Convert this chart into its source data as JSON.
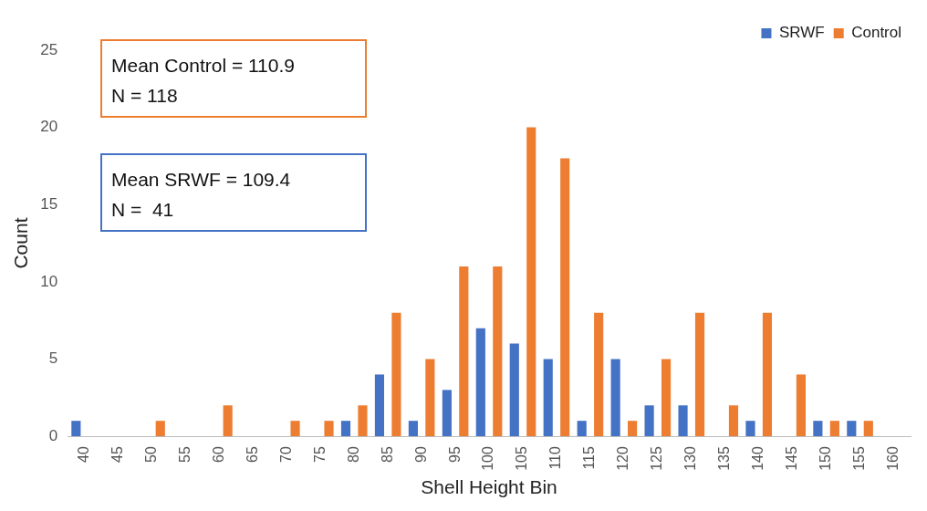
{
  "chart_data": {
    "type": "bar",
    "xlabel": "Shell Height Bin",
    "ylabel": "Count",
    "categories": [
      "40",
      "45",
      "50",
      "55",
      "60",
      "65",
      "70",
      "75",
      "80",
      "85",
      "90",
      "95",
      "100",
      "105",
      "110",
      "115",
      "120",
      "125",
      "130",
      "135",
      "140",
      "145",
      "150",
      "155",
      "160"
    ],
    "series": [
      {
        "name": "SRWF",
        "color": "#4472c4",
        "values": [
          1,
          0,
          0,
          0,
          0,
          0,
          0,
          0,
          1,
          4,
          1,
          3,
          7,
          6,
          5,
          1,
          5,
          2,
          2,
          0,
          1,
          0,
          1,
          1,
          0
        ]
      },
      {
        "name": "Control",
        "color": "#ed7d31",
        "values": [
          0,
          0,
          1,
          0,
          2,
          0,
          1,
          1,
          2,
          8,
          5,
          11,
          11,
          20,
          18,
          8,
          1,
          5,
          8,
          2,
          8,
          4,
          1,
          1,
          0
        ]
      }
    ],
    "ylim": [
      0,
      25
    ],
    "yticks": [
      0,
      5,
      10,
      15,
      20,
      25
    ],
    "grid": false,
    "legend": "top right",
    "annotations": [
      "Mean Control = 110.9\nN = 118",
      "Mean SRWF = 109.4\nN =  41"
    ]
  }
}
